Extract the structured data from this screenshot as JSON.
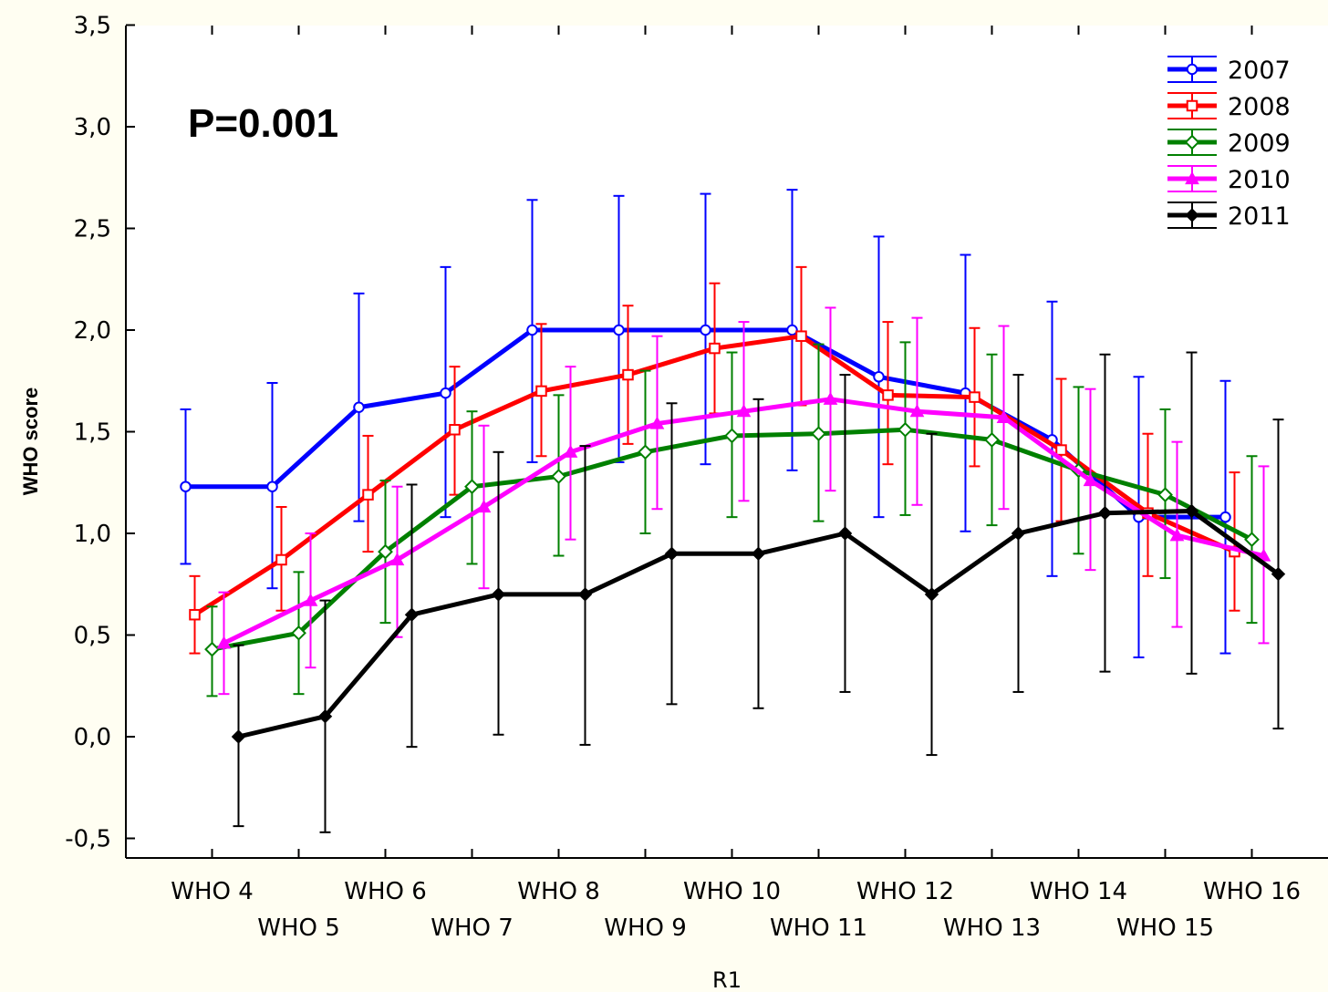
{
  "chart_data": {
    "type": "line",
    "title": "",
    "xlabel": "R1",
    "ylabel": "WHO score",
    "annotation": "P=0.001",
    "ylim": [
      -0.5,
      3.5
    ],
    "yticks": [
      "-0,5",
      "0,0",
      "0,5",
      "1,0",
      "1,5",
      "2,0",
      "2,5",
      "3,0",
      "3,5"
    ],
    "categories": [
      "WHO 4",
      "WHO 5",
      "WHO 6",
      "WHO 7",
      "WHO 8",
      "WHO 9",
      "WHO 10",
      "WHO 11",
      "WHO 12",
      "WHO 13",
      "WHO 14",
      "WHO 15",
      "WHO 16"
    ],
    "legend_position": "top-right",
    "grid": false,
    "series": [
      {
        "name": "2007",
        "color": "#0000ff",
        "marker": "circle",
        "values": [
          1.23,
          1.23,
          1.62,
          1.69,
          2.0,
          2.0,
          2.0,
          2.0,
          1.77,
          1.69,
          1.46,
          1.08,
          1.08
        ],
        "lower": [
          0.85,
          0.73,
          1.06,
          1.08,
          1.35,
          1.35,
          1.34,
          1.31,
          1.08,
          1.01,
          0.79,
          0.39,
          0.41
        ],
        "upper": [
          1.61,
          1.74,
          2.18,
          2.31,
          2.64,
          2.66,
          2.67,
          2.69,
          2.46,
          2.37,
          2.14,
          1.77,
          1.75
        ]
      },
      {
        "name": "2008",
        "color": "#ff0000",
        "marker": "square",
        "values": [
          0.6,
          0.87,
          1.19,
          1.51,
          1.7,
          1.78,
          1.91,
          1.97,
          1.68,
          1.67,
          1.41,
          1.1,
          0.91
        ],
        "lower": [
          0.41,
          0.62,
          0.91,
          1.19,
          1.38,
          1.44,
          1.59,
          1.63,
          1.34,
          1.33,
          1.06,
          0.79,
          0.62
        ],
        "upper": [
          0.79,
          1.13,
          1.48,
          1.82,
          2.03,
          2.12,
          2.23,
          2.31,
          2.04,
          2.01,
          1.76,
          1.49,
          1.3
        ]
      },
      {
        "name": "2009",
        "color": "#008000",
        "marker": "diamond",
        "values": [
          0.43,
          0.51,
          0.91,
          1.23,
          1.28,
          1.4,
          1.48,
          1.49,
          1.51,
          1.46,
          1.31,
          1.19,
          0.97
        ],
        "lower": [
          0.2,
          0.21,
          0.56,
          0.85,
          0.89,
          1.0,
          1.08,
          1.06,
          1.09,
          1.04,
          0.9,
          0.78,
          0.56
        ],
        "upper": [
          0.64,
          0.81,
          1.26,
          1.6,
          1.68,
          1.8,
          1.89,
          1.93,
          1.94,
          1.88,
          1.72,
          1.61,
          1.38
        ]
      },
      {
        "name": "2010",
        "color": "#ff00ff",
        "marker": "triangle",
        "values": [
          0.46,
          0.67,
          0.87,
          1.13,
          1.4,
          1.54,
          1.6,
          1.66,
          1.6,
          1.57,
          1.26,
          0.99,
          0.89
        ],
        "lower": [
          0.21,
          0.34,
          0.49,
          0.73,
          0.97,
          1.12,
          1.16,
          1.21,
          1.14,
          1.12,
          0.82,
          0.54,
          0.46
        ],
        "upper": [
          0.71,
          1.0,
          1.23,
          1.53,
          1.82,
          1.97,
          2.04,
          2.11,
          2.06,
          2.02,
          1.71,
          1.45,
          1.33
        ]
      },
      {
        "name": "2011",
        "color": "#000000",
        "marker": "filled-diamond",
        "values": [
          0.0,
          0.1,
          0.6,
          0.7,
          0.7,
          0.9,
          0.9,
          1.0,
          0.7,
          1.0,
          1.1,
          1.11,
          0.8
        ],
        "lower": [
          -0.44,
          -0.47,
          -0.05,
          0.01,
          -0.04,
          0.16,
          0.14,
          0.22,
          -0.09,
          0.22,
          0.32,
          0.31,
          0.04
        ],
        "upper": [
          0.45,
          0.67,
          1.24,
          1.4,
          1.43,
          1.64,
          1.66,
          1.78,
          1.49,
          1.78,
          1.88,
          1.89,
          1.56
        ]
      }
    ]
  }
}
